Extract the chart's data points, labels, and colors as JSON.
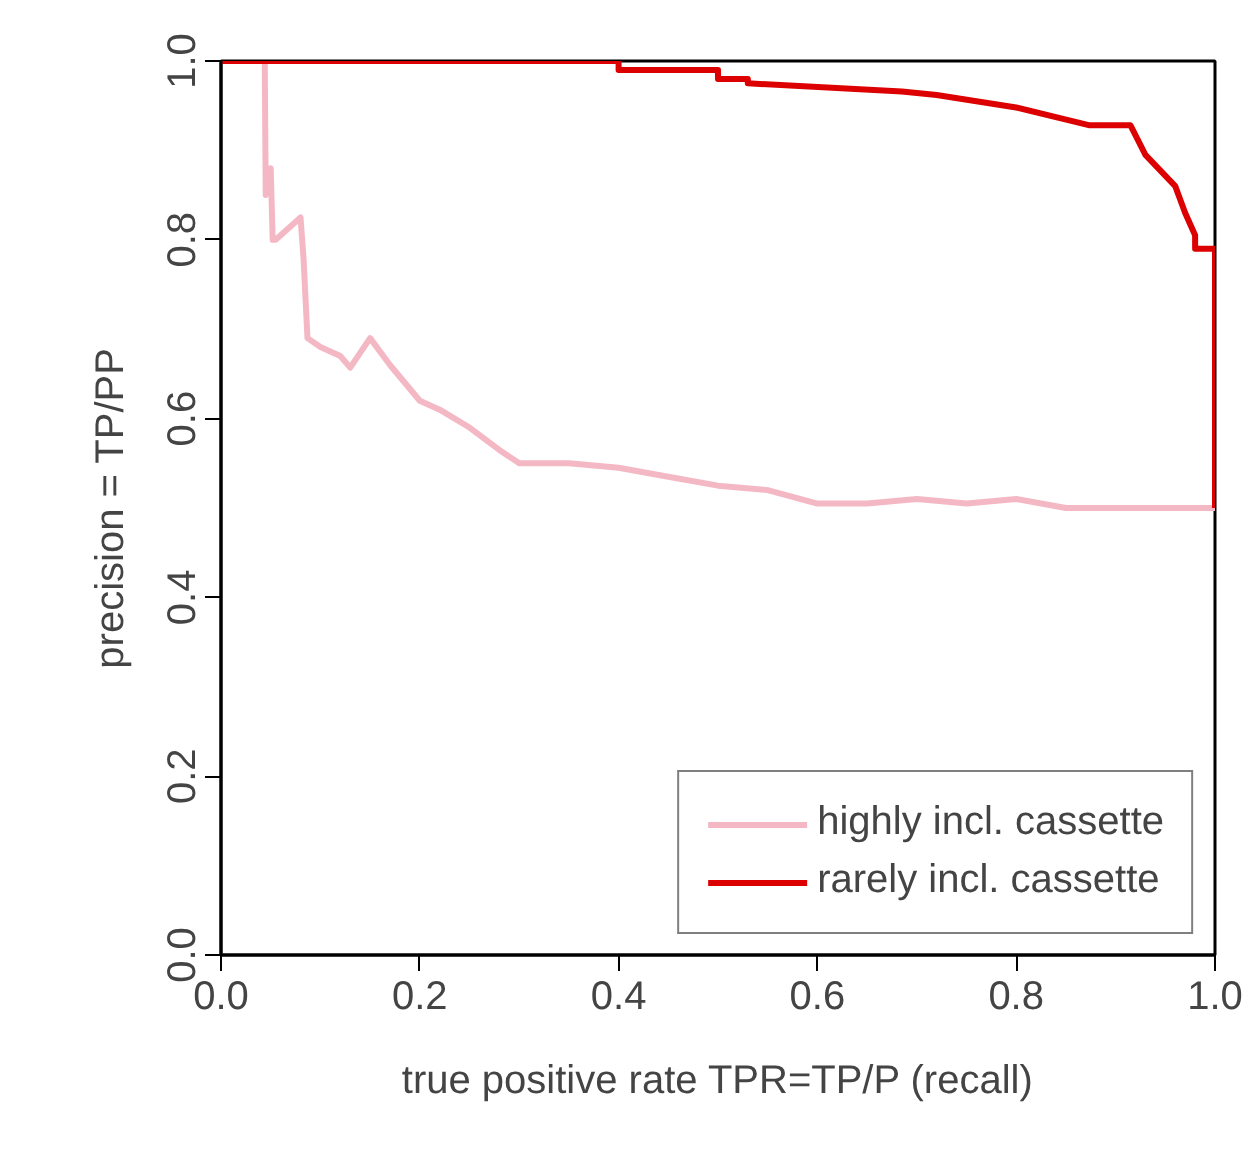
{
  "chart_data": {
    "type": "line",
    "xlabel": "true positive rate TPR=TP/P (recall)",
    "ylabel": "precision = TP/PP",
    "xlim": [
      0,
      1
    ],
    "ylim": [
      0,
      1
    ],
    "xticks": [
      {
        "value": 0,
        "label": "0.0"
      },
      0.2,
      0.4,
      0.6,
      0.8,
      {
        "value": 1,
        "label": "1.0"
      }
    ],
    "yticks": [
      {
        "value": 0,
        "label": "0.0"
      },
      0.2,
      0.4,
      0.6,
      0.8,
      {
        "value": 1,
        "label": "1.0"
      }
    ],
    "grid": false,
    "legend": "bottom right",
    "line_style": "solid",
    "marker": "none",
    "series": [
      {
        "name": "highly incl. cassette",
        "color": "#f4b8c4",
        "x": [
          0.044,
          0.045,
          0.05,
          0.052,
          0.055,
          0.08,
          0.083,
          0.087,
          0.1,
          0.12,
          0.13,
          0.15,
          0.17,
          0.2,
          0.22,
          0.25,
          0.28,
          0.3,
          0.35,
          0.4,
          0.45,
          0.5,
          0.55,
          0.6,
          0.65,
          0.7,
          0.75,
          0.8,
          0.85,
          0.9,
          0.95,
          1.0
        ],
        "values": [
          1.0,
          0.85,
          0.88,
          0.8,
          0.8,
          0.825,
          0.78,
          0.69,
          0.68,
          0.67,
          0.657,
          0.69,
          0.66,
          0.62,
          0.61,
          0.59,
          0.565,
          0.55,
          0.55,
          0.545,
          0.535,
          0.525,
          0.52,
          0.505,
          0.505,
          0.51,
          0.505,
          0.51,
          0.5,
          0.5,
          0.5,
          0.5
        ]
      },
      {
        "name": "rarely incl. cassette",
        "color": "#dd0000",
        "x": [
          0.0,
          0.4,
          0.4,
          0.5,
          0.5,
          0.53,
          0.53,
          0.685,
          0.72,
          0.8,
          0.874,
          0.915,
          0.93,
          0.96,
          0.97,
          0.98,
          0.98,
          1.0,
          1.0
        ],
        "values": [
          1.0,
          1.0,
          0.99,
          0.99,
          0.98,
          0.98,
          0.975,
          0.966,
          0.962,
          0.948,
          0.928,
          0.928,
          0.895,
          0.86,
          0.83,
          0.805,
          0.79,
          0.79,
          0.5
        ]
      }
    ]
  }
}
